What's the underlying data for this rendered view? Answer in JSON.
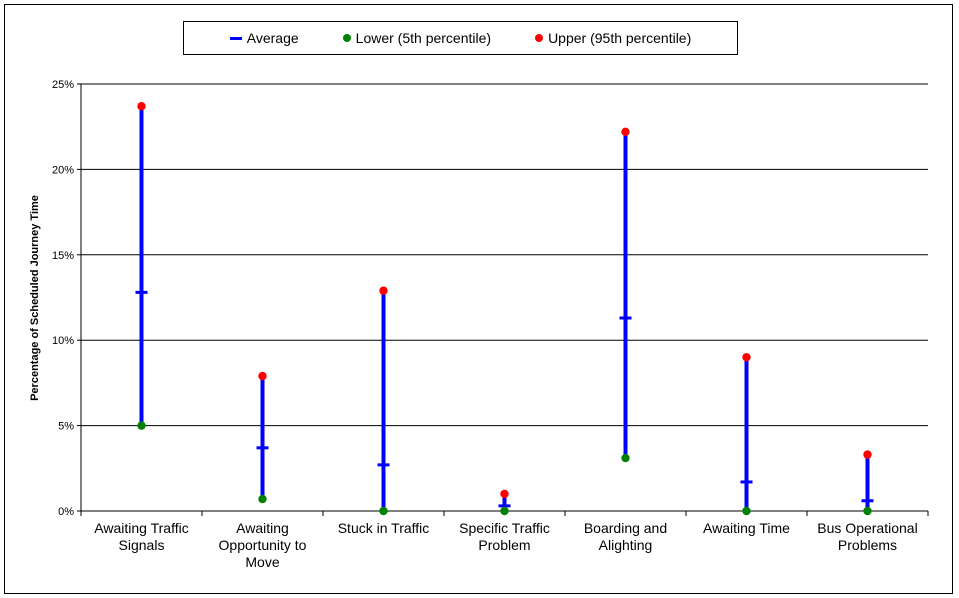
{
  "chart_data": {
    "type": "error-range",
    "title": "",
    "xlabel": "",
    "ylabel": "Percentage of Scheduled Journey Time",
    "ylim": [
      0,
      25
    ],
    "yticks": [
      0,
      5,
      10,
      15,
      20,
      25
    ],
    "ytick_labels": [
      "0%",
      "5%",
      "10%",
      "15%",
      "20%",
      "25%"
    ],
    "grid": "horizontal",
    "legend_position": "top-center",
    "categories": [
      [
        "Awaiting Traffic",
        "Signals"
      ],
      [
        "Awaiting",
        "Opportunity to",
        "Move"
      ],
      [
        "Stuck in Traffic"
      ],
      [
        "Specific Traffic",
        "Problem"
      ],
      [
        "Boarding and",
        "Alighting"
      ],
      [
        "Awaiting Time"
      ],
      [
        "Bus Operational",
        "Problems"
      ]
    ],
    "series": [
      {
        "name": "Average",
        "color": "#0000ff",
        "marker": "dash",
        "values": [
          12.8,
          3.7,
          2.7,
          0.3,
          11.3,
          1.7,
          0.6
        ]
      },
      {
        "name": "Lower (5th percentile)",
        "color": "#008000",
        "marker": "dot",
        "values": [
          5.0,
          0.7,
          0.0,
          0.0,
          3.1,
          0.0,
          0.0
        ]
      },
      {
        "name": "Upper (95th percentile)",
        "color": "#ff0000",
        "marker": "dot",
        "values": [
          23.7,
          7.9,
          12.9,
          1.0,
          22.2,
          9.0,
          3.3
        ]
      }
    ]
  }
}
